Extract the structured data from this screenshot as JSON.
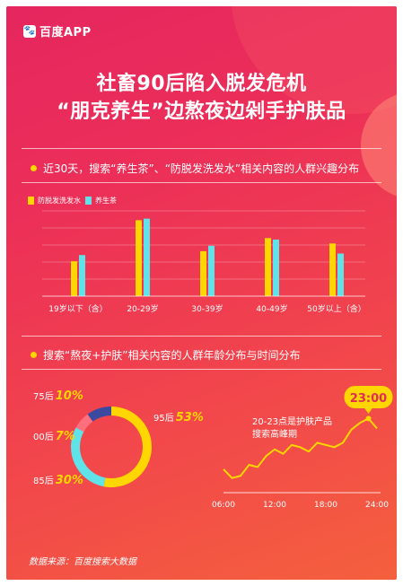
{
  "brand": {
    "logo_icon": "baidu-paw-icon",
    "name": "百度APP"
  },
  "headline": {
    "line1": "社畜90后陷入脱发危机",
    "line2": "“朋克养生”边熬夜边剁手护肤品"
  },
  "section1": {
    "title": "近30天，搜索“养生茶”、“防脱发洗发水”相关内容的人群兴趣分布"
  },
  "section2": {
    "title": "搜索“熬夜+护肤”相关内容的人群年龄分布与时间分布"
  },
  "colors": {
    "yellow": "#ffd600",
    "cyan": "#5fe3e8",
    "navy": "#3b4aa0",
    "pink": "#ff6f7d"
  },
  "chart_data": [
    {
      "type": "bar",
      "categories": [
        "19岁以下（含）",
        "20-29岁",
        "30-39岁",
        "40-49岁",
        "50岁以上（含）"
      ],
      "series": [
        {
          "name": "防脱发洗发水",
          "values": [
            45,
            98,
            58,
            75,
            68
          ]
        },
        {
          "name": "养生茶",
          "values": [
            53,
            100,
            65,
            73,
            55
          ]
        }
      ],
      "ylim": [
        0,
        110
      ],
      "grid": true,
      "legend": "top-left"
    },
    {
      "type": "pie",
      "style": "donut",
      "labels": [
        "95后",
        "85后",
        "00后",
        "75后"
      ],
      "values": [
        53,
        30,
        7,
        10
      ],
      "colors": [
        "#ffd600",
        "#5fe3e8",
        "#ff6f7d",
        "#3b4aa0"
      ]
    },
    {
      "type": "line",
      "x_ticks": [
        "06:00",
        "12:00",
        "18:00",
        "24:00"
      ],
      "x": [
        6,
        7,
        8,
        9,
        10,
        11,
        12,
        13,
        14,
        15,
        16,
        17,
        18,
        19,
        20,
        21,
        22,
        23,
        24
      ],
      "y": [
        48,
        40,
        42,
        52,
        50,
        60,
        66,
        62,
        70,
        68,
        64,
        72,
        70,
        68,
        72,
        84,
        90,
        94,
        85
      ],
      "annotation": {
        "x": 23,
        "badge": "23:00",
        "text_line1": "20-23点是护肤产品",
        "text_line2": "搜索高峰期"
      },
      "ylim": [
        30,
        100
      ]
    }
  ],
  "source": "数据来源：百度搜索大数据"
}
